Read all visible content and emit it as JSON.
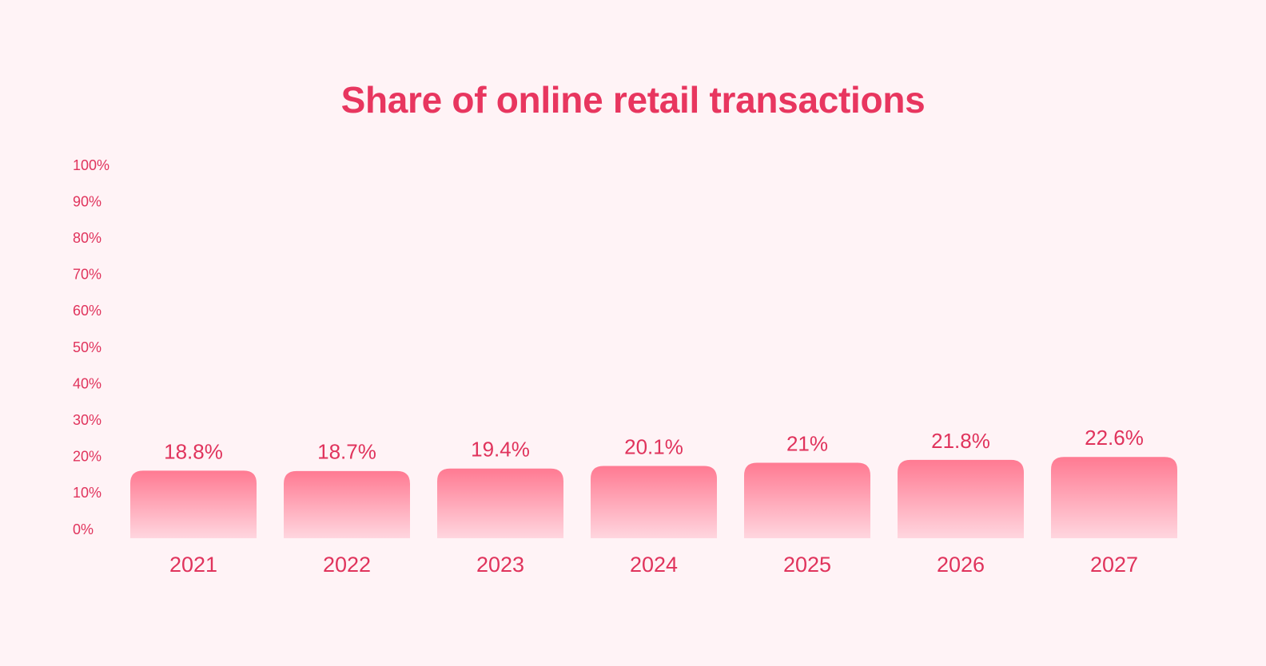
{
  "chart_data": {
    "type": "bar",
    "title": "Share of online retail transactions",
    "categories": [
      "2021",
      "2022",
      "2023",
      "2024",
      "2025",
      "2026",
      "2027"
    ],
    "values": [
      18.8,
      18.7,
      19.4,
      20.1,
      21,
      21.8,
      22.6
    ],
    "value_labels": [
      "18.8%",
      "18.7%",
      "19.4%",
      "20.1%",
      "21%",
      "21.8%",
      "22.6%"
    ],
    "ylim": [
      0,
      100
    ],
    "yticks": [
      0,
      10,
      20,
      30,
      40,
      50,
      60,
      70,
      80,
      90,
      100
    ],
    "ytick_labels": [
      "0%",
      "10%",
      "20%",
      "30%",
      "40%",
      "50%",
      "60%",
      "70%",
      "80%",
      "90%",
      "100%"
    ],
    "xlabel": "",
    "ylabel": "",
    "grid": false,
    "legend": "none"
  },
  "colors": {
    "background": "#fff3f6",
    "title": "#e8365f",
    "text": "#e0335c",
    "bar_top": "#ff7a92",
    "bar_bottom": "#ffd6df"
  }
}
